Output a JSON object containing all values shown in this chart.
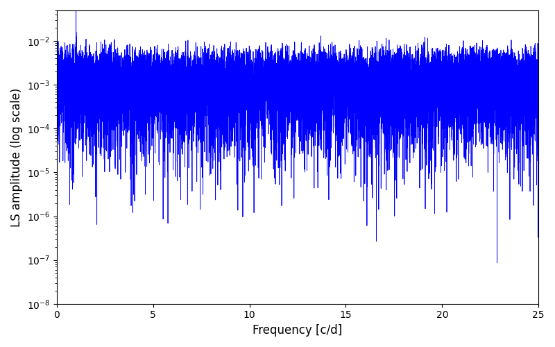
{
  "xlabel": "Frequency [c/d]",
  "ylabel": "LS amplitude (log scale)",
  "line_color": "#0000FF",
  "line_width": 0.6,
  "xlim": [
    0,
    25
  ],
  "ylim": [
    1e-08,
    0.05
  ],
  "yscale": "log",
  "figsize": [
    8.0,
    5.0
  ],
  "dpi": 100,
  "freq_max": 25.0,
  "n_points": 15000,
  "seed": 7
}
